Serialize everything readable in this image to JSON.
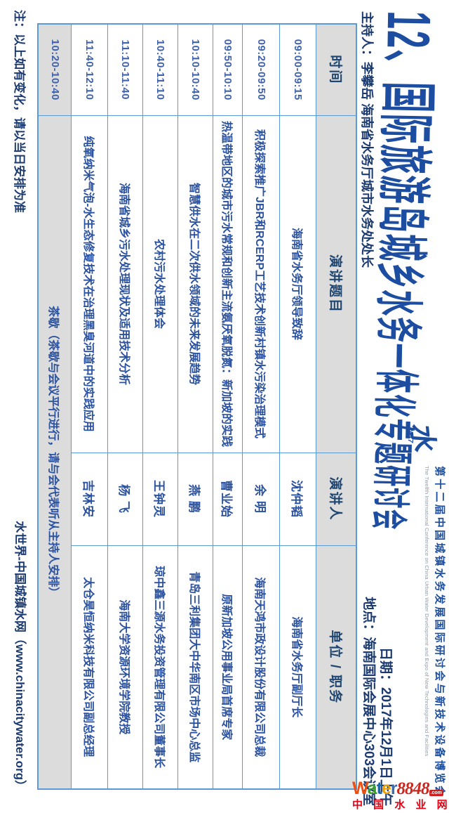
{
  "header": {
    "title": "12、国际旅游岛城乡水务一体化专题研讨会",
    "host": "主持人：李攀岳 海南省水务厅城市水务处处长",
    "date": "日期：2017年12月1日上午",
    "location": "地点：海南国际会展中心303会议室"
  },
  "logo": {
    "glyph": "水",
    "year": "2017",
    "slogan_cn": "第十二届中国城镇水务发展国际研讨会与新技术设备博览会",
    "slogan_en": "The Twelfth International Conference on China Urban Water Development and Expo of New Technologies and Facilities"
  },
  "table": {
    "headers": [
      "时间",
      "演讲题目",
      "演讲人",
      "单位 / 职务"
    ],
    "rows": [
      {
        "time": "09:00-09:15",
        "topic": "海南省水务厅领导致辞",
        "speaker": "沈仲韬",
        "org": "海南省水务厅副厅长"
      },
      {
        "time": "09:20-09:50",
        "topic": "积极探索推广JBR和RCERP工艺技术创新村镇水污染治理模式",
        "speaker": "余 明",
        "org": "海南天鸿市政设计股份有限公司总裁"
      },
      {
        "time": "09:50-10:10",
        "topic": "热温带地区的城市污水常规和创新主流氨厌氧脱氮：新加坡的实践",
        "speaker": "曹业始",
        "org": "原新加坡公用事业局首席专家"
      },
      {
        "time": "10:10-10:40",
        "topic": "智慧供水在二次供水领域的未来发展趋势",
        "speaker": "燕 鹏",
        "org": "青岛三利集团大中华南区市场中心总监"
      },
      {
        "time": "10:40-11:10",
        "topic": "农村污水处理体会",
        "speaker": "王钟灵",
        "org": "琼中鑫三源水务投资管理有限公司董事长"
      },
      {
        "time": "11:10-11:40",
        "topic": "海南省城乡污水处理现状及适用技术分析",
        "speaker": "杨 飞",
        "org": "海南大学资源环境学院教授"
      },
      {
        "time": "11:40-12:10",
        "topic": "纯氧纳米气泡-水生态修复技术在治理黑臭河道中的实践应用",
        "speaker": "吉林安",
        "org": "太仓昊恒纳米科技有限公司副总经理"
      }
    ],
    "tea": {
      "time": "10:20-10:40",
      "text": "茶歇（茶歇与会议平行进行，请与会代表听从主持人安排）"
    }
  },
  "footer": {
    "note": "注：以上如有变化，请以当日安排为准",
    "site": "水世界-中国城镇水网（www.chinacitywater.org）"
  },
  "watermark": {
    "letters": [
      "W",
      "a",
      "t",
      "e",
      "r"
    ],
    "num": "8848",
    "dot": ".com",
    "cn": "中 国 水 业 网"
  },
  "colors": {
    "title_blue": "#1c4da0",
    "text_navy": "#1b3a70",
    "table_text_blue": "#2b52a0",
    "border_blue": "#5b9bd5",
    "header_grey": "#dcdcdc",
    "watermark_red": "#e60012"
  }
}
